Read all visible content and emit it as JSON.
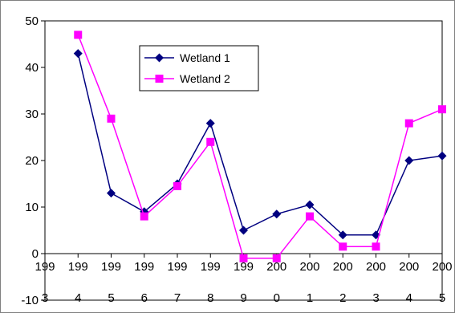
{
  "chart_data": {
    "type": "line",
    "x_tick_top": [
      "199",
      "199",
      "199",
      "199",
      "199",
      "199",
      "199",
      "200",
      "200",
      "200",
      "200",
      "200",
      "200"
    ],
    "x_tick_bottom": [
      "3",
      "4",
      "5",
      "6",
      "7",
      "8",
      "9",
      "0",
      "1",
      "2",
      "3",
      "4",
      "5"
    ],
    "x": [
      1993,
      1994,
      1995,
      1996,
      1997,
      1998,
      1999,
      2000,
      2001,
      2002,
      2003,
      2004,
      2005
    ],
    "y_ticks": [
      -10,
      0,
      10,
      20,
      30,
      40,
      50
    ],
    "ylim": [
      -10,
      50
    ],
    "series": [
      {
        "name": "Wetland 1",
        "color": "#000080",
        "marker": "diamond",
        "values": [
          null,
          43,
          13,
          9,
          15,
          28,
          5,
          8.5,
          10.5,
          4,
          4,
          20,
          21
        ]
      },
      {
        "name": "Wetland 2",
        "color": "#ff00ff",
        "marker": "square",
        "values": [
          null,
          47,
          29,
          8,
          14.5,
          24,
          -1,
          -1,
          8,
          1.5,
          1.5,
          28,
          31
        ]
      }
    ],
    "legend_position": "top-left-inside",
    "grid": false
  }
}
